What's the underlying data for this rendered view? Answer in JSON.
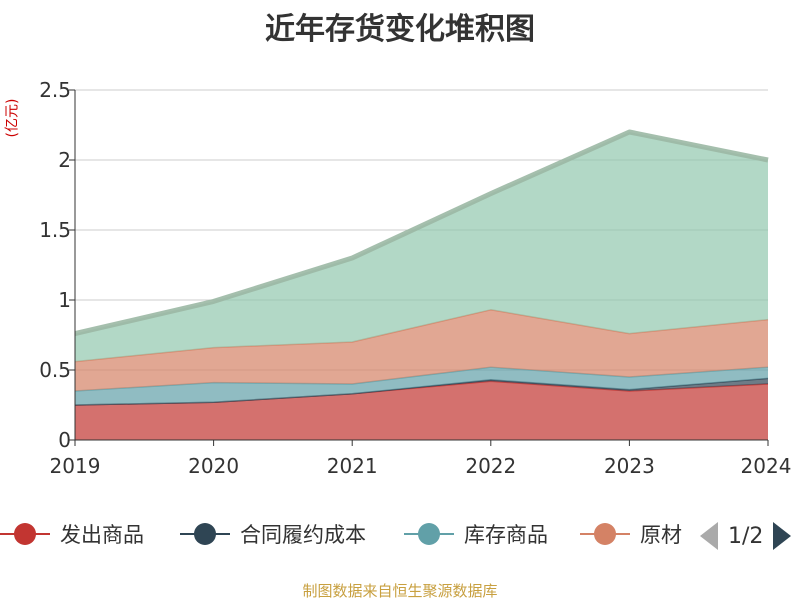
{
  "chart_data": {
    "type": "area",
    "stacked": true,
    "title": "近年存货变化堆积图",
    "unit_label": "(亿元)",
    "categories": [
      "2019",
      "2020",
      "2021",
      "2022",
      "2023",
      "2024"
    ],
    "ylim": [
      0,
      2.5
    ],
    "yticks": [
      "0",
      "0.5",
      "1",
      "1.5",
      "2",
      "2.5"
    ],
    "grid": true,
    "legend_position": "bottom",
    "series": [
      {
        "name": "发出商品",
        "values": [
          0.25,
          0.27,
          0.33,
          0.42,
          0.35,
          0.4
        ],
        "color": "#c23531"
      },
      {
        "name": "合同履约成本",
        "values": [
          0.0,
          0.0,
          0.0,
          0.01,
          0.01,
          0.04
        ],
        "color": "#2f4554"
      },
      {
        "name": "库存商品",
        "values": [
          0.1,
          0.14,
          0.07,
          0.09,
          0.09,
          0.08
        ],
        "color": "#61a0a8"
      },
      {
        "name": "原材料",
        "values": [
          0.21,
          0.25,
          0.3,
          0.41,
          0.31,
          0.34
        ],
        "color": "#d48265"
      },
      {
        "name": "",
        "values": [
          0.2,
          0.33,
          0.6,
          0.83,
          1.44,
          1.14
        ],
        "color": "#91c7ae"
      }
    ]
  },
  "legend": {
    "page_indicator": "1/2",
    "items": [
      "发出商品",
      "合同履约成本",
      "库存商品",
      "原材"
    ]
  },
  "source_note": "制图数据来自恒生聚源数据库"
}
